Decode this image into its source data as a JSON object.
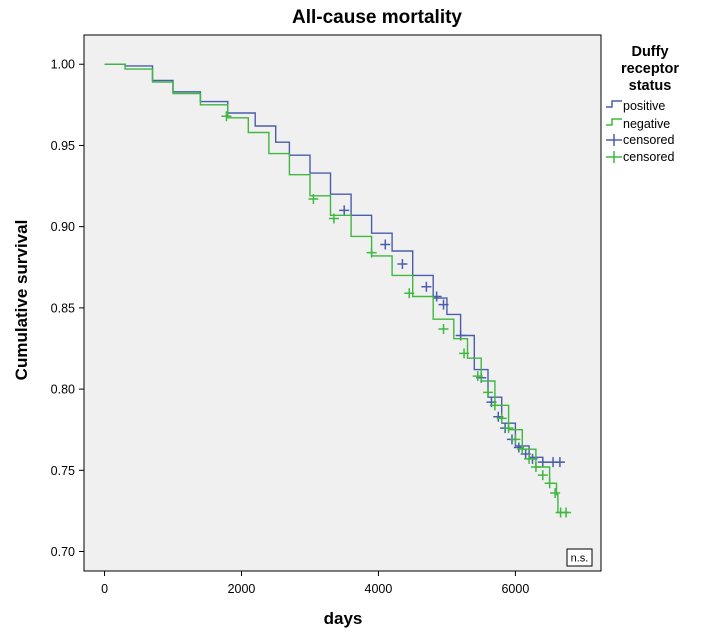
{
  "chart_data": {
    "type": "line",
    "title": "All-cause mortality",
    "xlabel": "days",
    "ylabel": "Cumulative survival",
    "xlim": [
      -300,
      7250
    ],
    "ylim": [
      0.688,
      1.018
    ],
    "xticks": [
      0,
      2000,
      4000,
      6000
    ],
    "xtick_labels": [
      "0",
      "2000",
      "4000",
      "6000"
    ],
    "yticks": [
      0.7,
      0.75,
      0.8,
      0.85,
      0.9,
      0.95,
      1.0
    ],
    "ytick_labels": [
      "0.70",
      "0.75",
      "0.80",
      "0.85",
      "0.90",
      "0.95",
      "1.00"
    ],
    "grid": false,
    "plot_background": "#f0f0f0",
    "legend": {
      "title_lines": [
        "Duffy",
        "receptor",
        "status"
      ],
      "placement": "right",
      "entries": [
        {
          "label": "positive",
          "kind": "line",
          "color": "#4a5dac"
        },
        {
          "label": "negative",
          "kind": "line",
          "color": "#3fb83f"
        },
        {
          "label": "censored",
          "kind": "marker",
          "color": "#4a5dac"
        },
        {
          "label": "censored",
          "kind": "marker",
          "color": "#3fb83f"
        }
      ]
    },
    "annotation": "n.s.",
    "series": [
      {
        "name": "positive",
        "color": "#4a5dac",
        "points": [
          [
            0,
            1.0
          ],
          [
            300,
            0.999
          ],
          [
            700,
            0.99
          ],
          [
            1000,
            0.983
          ],
          [
            1400,
            0.977
          ],
          [
            1800,
            0.97
          ],
          [
            2200,
            0.962
          ],
          [
            2500,
            0.952
          ],
          [
            2700,
            0.944
          ],
          [
            3000,
            0.933
          ],
          [
            3300,
            0.92
          ],
          [
            3600,
            0.907
          ],
          [
            3900,
            0.896
          ],
          [
            4200,
            0.885
          ],
          [
            4500,
            0.87
          ],
          [
            4800,
            0.856
          ],
          [
            5000,
            0.846
          ],
          [
            5200,
            0.833
          ],
          [
            5400,
            0.812
          ],
          [
            5600,
            0.795
          ],
          [
            5800,
            0.779
          ],
          [
            6000,
            0.765
          ],
          [
            6200,
            0.758
          ],
          [
            6400,
            0.755
          ],
          [
            6700,
            0.755
          ]
        ],
        "censored": [
          [
            3500,
            0.91
          ],
          [
            4100,
            0.889
          ],
          [
            4350,
            0.877
          ],
          [
            4700,
            0.863
          ],
          [
            4850,
            0.857
          ],
          [
            4950,
            0.852
          ],
          [
            5200,
            0.833
          ],
          [
            5500,
            0.807
          ],
          [
            5650,
            0.792
          ],
          [
            5750,
            0.783
          ],
          [
            5850,
            0.776
          ],
          [
            5950,
            0.769
          ],
          [
            6050,
            0.764
          ],
          [
            6150,
            0.76
          ],
          [
            6250,
            0.757
          ],
          [
            6400,
            0.755
          ],
          [
            6550,
            0.755
          ],
          [
            6650,
            0.755
          ]
        ]
      },
      {
        "name": "negative",
        "color": "#3fb83f",
        "points": [
          [
            0,
            1.0
          ],
          [
            300,
            0.997
          ],
          [
            700,
            0.989
          ],
          [
            1000,
            0.982
          ],
          [
            1400,
            0.975
          ],
          [
            1800,
            0.967
          ],
          [
            2100,
            0.958
          ],
          [
            2400,
            0.945
          ],
          [
            2700,
            0.932
          ],
          [
            3000,
            0.919
          ],
          [
            3300,
            0.907
          ],
          [
            3600,
            0.894
          ],
          [
            3900,
            0.882
          ],
          [
            4200,
            0.87
          ],
          [
            4500,
            0.857
          ],
          [
            4800,
            0.843
          ],
          [
            5100,
            0.831
          ],
          [
            5300,
            0.819
          ],
          [
            5500,
            0.805
          ],
          [
            5700,
            0.79
          ],
          [
            5900,
            0.775
          ],
          [
            6100,
            0.763
          ],
          [
            6300,
            0.752
          ],
          [
            6500,
            0.742
          ],
          [
            6600,
            0.735
          ],
          [
            6620,
            0.724
          ],
          [
            6780,
            0.724
          ]
        ],
        "censored": [
          [
            1780,
            0.968
          ],
          [
            3050,
            0.917
          ],
          [
            3350,
            0.905
          ],
          [
            3900,
            0.884
          ],
          [
            4450,
            0.859
          ],
          [
            4950,
            0.837
          ],
          [
            5250,
            0.822
          ],
          [
            5450,
            0.808
          ],
          [
            5600,
            0.798
          ],
          [
            5700,
            0.79
          ],
          [
            5800,
            0.782
          ],
          [
            5900,
            0.776
          ],
          [
            6000,
            0.769
          ],
          [
            6100,
            0.763
          ],
          [
            6200,
            0.757
          ],
          [
            6300,
            0.752
          ],
          [
            6400,
            0.747
          ],
          [
            6500,
            0.742
          ],
          [
            6580,
            0.736
          ],
          [
            6660,
            0.724
          ],
          [
            6740,
            0.724
          ]
        ]
      }
    ]
  }
}
